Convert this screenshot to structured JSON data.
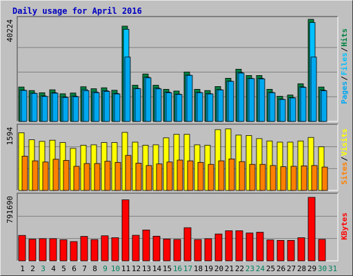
{
  "chart_data": {
    "type": "bar",
    "title": "Daily usage for April 2016",
    "days": [
      "1",
      "2",
      "3",
      "4",
      "5",
      "6",
      "7",
      "8",
      "9",
      "10",
      "11",
      "12",
      "13",
      "14",
      "15",
      "16",
      "17",
      "18",
      "19",
      "20",
      "21",
      "22",
      "23",
      "24",
      "25",
      "26",
      "27",
      "28",
      "29",
      "30",
      "31"
    ],
    "weekend_days": [
      "3",
      "9",
      "10",
      "16",
      "17",
      "23",
      "24",
      "30",
      "31"
    ],
    "panels": [
      {
        "id": "hits-files-pages",
        "max_label": "40224",
        "max": 40224,
        "legend": [
          "Pages",
          "/",
          "Files",
          "/",
          "Hits"
        ],
        "series": [
          {
            "name": "Hits",
            "color": "#008040",
            "values": [
              13200,
              11800,
              10900,
              12100,
              10500,
              10800,
              13300,
              12500,
              12900,
              11900,
              37500,
              13900,
              18400,
              13900,
              12300,
              11600,
              19200,
              12300,
              11800,
              13400,
              16700,
              20300,
              17800,
              17800,
              12300,
              9500,
              10000,
              14500,
              40224,
              13200,
              null
            ]
          },
          {
            "name": "Files",
            "color": "#00c0ff",
            "values": [
              12500,
              11300,
              10200,
              11500,
              9800,
              10100,
              12700,
              11800,
              12300,
              11200,
              36800,
              13200,
              17700,
              13300,
              11700,
              10900,
              18500,
              11600,
              11100,
              12700,
              16100,
              19600,
              17200,
              17200,
              11600,
              8900,
              9500,
              13800,
              39500,
              12500,
              null
            ]
          },
          {
            "name": "Pages",
            "color": "#00a8f0",
            "values": [
              12400,
              11200,
              10000,
              11300,
              9600,
              9900,
              12300,
              11500,
              12000,
              11000,
              25700,
              13100,
              17400,
              13000,
              11500,
              10800,
              18400,
              11500,
              11000,
              12600,
              16000,
              19300,
              17100,
              17000,
              11500,
              8800,
              9400,
              13600,
              25700,
              12300,
              null
            ]
          }
        ]
      },
      {
        "id": "visits-sites",
        "max_label": "1594",
        "max": 1594,
        "legend": [
          "Sites",
          "/",
          "Visits"
        ],
        "series": [
          {
            "name": "Visits",
            "color": "#ffff00",
            "values": [
              1480,
              1300,
              1260,
              1290,
              1230,
              1080,
              1160,
              1170,
              1230,
              1230,
              1490,
              1240,
              1160,
              1170,
              1350,
              1440,
              1440,
              1170,
              1160,
              1560,
              1580,
              1420,
              1410,
              1330,
              1270,
              1240,
              1240,
              1270,
              1360,
              1120,
              null
            ]
          },
          {
            "name": "Sites",
            "color": "#ff8000",
            "values": [
              880,
              760,
              730,
              800,
              770,
              620,
              690,
              690,
              750,
              720,
              900,
              700,
              640,
              680,
              730,
              780,
              760,
              720,
              670,
              760,
              810,
              740,
              670,
              670,
              640,
              610,
              620,
              630,
              640,
              600,
              null
            ]
          }
        ]
      },
      {
        "id": "kbytes",
        "max_label": "791690",
        "max": 791690,
        "legend": [
          "KBytes"
        ],
        "series": [
          {
            "name": "KBytes",
            "color": "#ff0000",
            "values": [
              317000,
              270000,
              276000,
              276000,
              263000,
              240000,
              305000,
              265000,
              312000,
              288000,
              761000,
              318000,
              385000,
              307000,
              272000,
              267000,
              413000,
              265000,
              275000,
              335000,
              375000,
              375000,
              347000,
              356000,
              261000,
              255000,
              255000,
              288000,
              791690,
              268000,
              null
            ]
          }
        ]
      }
    ]
  }
}
